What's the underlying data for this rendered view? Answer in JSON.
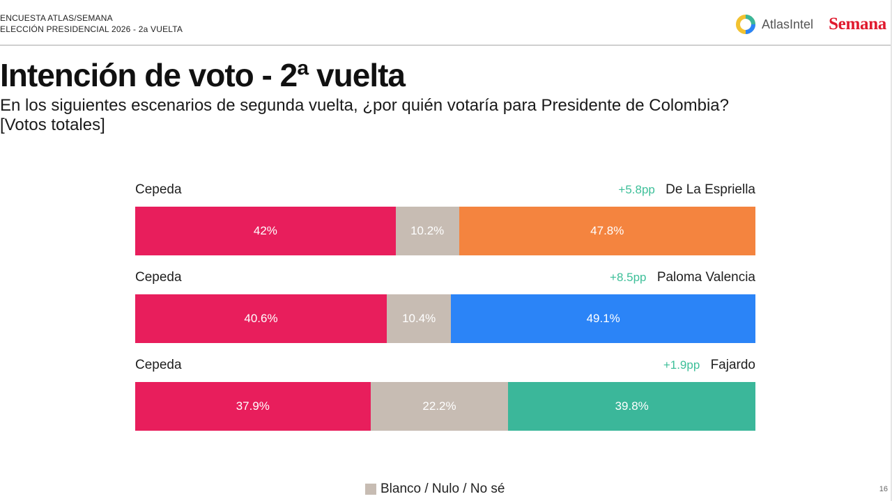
{
  "header": {
    "line1": "ENCUESTA ATLAS/SEMANA",
    "line2": "ELECCIÓN PRESIDENCIAL 2026 - 2a VUELTA",
    "logo_atlas": "AtlasIntel",
    "logo_semana": "Semana"
  },
  "title": "Intención de voto - 2ª vuelta",
  "subtitle_line1": "En los siguientes escenarios de segunda vuelta, ¿por quién votaría para Presidente de Colombia?",
  "subtitle_line2": "[Votos totales]",
  "legend": {
    "blank_label": "Blanco / Nulo / No sé"
  },
  "page_number": "16",
  "colors": {
    "cepeda": "#e81e5c",
    "blank": "#c7bcb3",
    "de_la_espriella": "#f4843f",
    "paloma_valencia": "#2b84f7",
    "fajardo": "#3bb79a",
    "diff_text": "#3dbf99"
  },
  "chart_data": {
    "type": "bar",
    "orientation": "horizontal-stacked",
    "title": "Intención de voto - 2ª vuelta",
    "unit": "%",
    "scenarios": [
      {
        "left_name": "Cepeda",
        "left_value": 42,
        "left_label": "42%",
        "blank_value": 10.2,
        "blank_label": "10.2%",
        "right_name": "De La Espriella",
        "right_value": 47.8,
        "right_label": "47.8%",
        "right_color": "#f4843f",
        "difference": "+5.8pp"
      },
      {
        "left_name": "Cepeda",
        "left_value": 40.6,
        "left_label": "40.6%",
        "blank_value": 10.4,
        "blank_label": "10.4%",
        "right_name": "Paloma Valencia",
        "right_value": 49.1,
        "right_label": "49.1%",
        "right_color": "#2b84f7",
        "difference": "+8.5pp"
      },
      {
        "left_name": "Cepeda",
        "left_value": 37.9,
        "left_label": "37.9%",
        "blank_value": 22.2,
        "blank_label": "22.2%",
        "right_name": "Fajardo",
        "right_value": 39.8,
        "right_label": "39.8%",
        "right_color": "#3bb79a",
        "difference": "+1.9pp"
      }
    ]
  }
}
